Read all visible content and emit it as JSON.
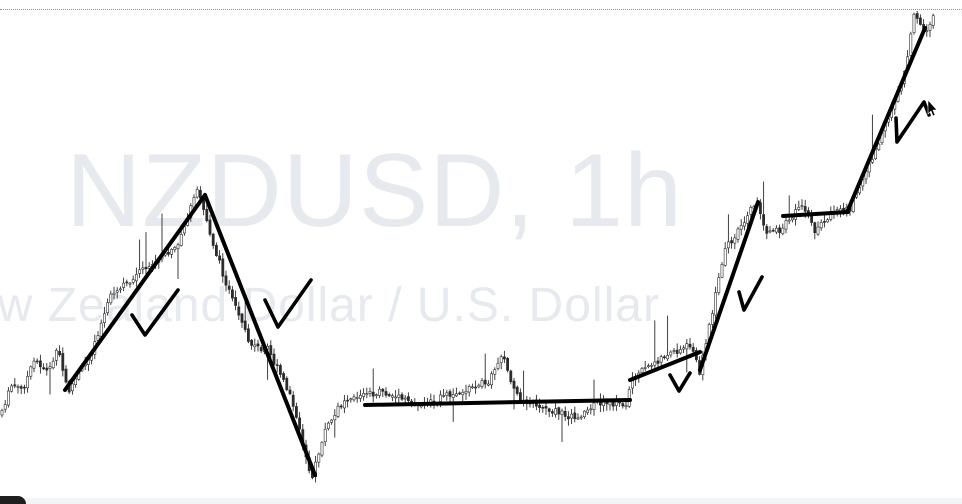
{
  "watermark": {
    "symbol": "NZDUSD, 1h",
    "description": "ew Zealand Dollar / U.S. Dollar"
  },
  "colors": {
    "candle": "#2b2b2b",
    "annotation": "#000000",
    "watermark": "#e6e9ee"
  },
  "chart_data": {
    "type": "candlestick",
    "title": "NZDUSD, 1h",
    "subtitle": "ew Zealand Dollar / U.S. Dollar",
    "xlabel": "",
    "ylabel": "",
    "grid": false,
    "path_anchors": [
      [
        0,
        415
      ],
      [
        12,
        385
      ],
      [
        22,
        390
      ],
      [
        35,
        360
      ],
      [
        48,
        372
      ],
      [
        58,
        350
      ],
      [
        68,
        392
      ],
      [
        90,
        355
      ],
      [
        110,
        298
      ],
      [
        140,
        272
      ],
      [
        175,
        250
      ],
      [
        198,
        190
      ],
      [
        215,
        250
      ],
      [
        232,
        300
      ],
      [
        250,
        345
      ],
      [
        268,
        350
      ],
      [
        290,
        395
      ],
      [
        312,
        478
      ],
      [
        325,
        430
      ],
      [
        345,
        398
      ],
      [
        380,
        392
      ],
      [
        420,
        405
      ],
      [
        460,
        392
      ],
      [
        490,
        380
      ],
      [
        502,
        352
      ],
      [
        515,
        395
      ],
      [
        545,
        408
      ],
      [
        575,
        418
      ],
      [
        600,
        402
      ],
      [
        628,
        405
      ],
      [
        630,
        380
      ],
      [
        665,
        355
      ],
      [
        690,
        345
      ],
      [
        700,
        372
      ],
      [
        725,
        250
      ],
      [
        757,
        200
      ],
      [
        765,
        230
      ],
      [
        780,
        232
      ],
      [
        800,
        205
      ],
      [
        815,
        230
      ],
      [
        830,
        215
      ],
      [
        850,
        208
      ],
      [
        880,
        140
      ],
      [
        905,
        70
      ],
      [
        915,
        12
      ],
      [
        925,
        38
      ],
      [
        935,
        14
      ]
    ],
    "annotations": [
      {
        "type": "trendline",
        "points": [
          [
            65,
            390
          ],
          [
            205,
            195
          ]
        ]
      },
      {
        "type": "checkmark",
        "points": [
          [
            132,
            315
          ],
          [
            145,
            335
          ],
          [
            178,
            290
          ]
        ]
      },
      {
        "type": "trendline",
        "points": [
          [
            205,
            195
          ],
          [
            315,
            475
          ]
        ]
      },
      {
        "type": "checkmark",
        "points": [
          [
            265,
            300
          ],
          [
            278,
            327
          ],
          [
            311,
            280
          ]
        ]
      },
      {
        "type": "trendline",
        "points": [
          [
            365,
            405
          ],
          [
            630,
            400
          ]
        ]
      },
      {
        "type": "trendline",
        "points": [
          [
            630,
            380
          ],
          [
            700,
            352
          ]
        ]
      },
      {
        "type": "checkmark",
        "points": [
          [
            670,
            375
          ],
          [
            679,
            391
          ],
          [
            690,
            373
          ]
        ]
      },
      {
        "type": "trendline",
        "points": [
          [
            700,
            370
          ],
          [
            758,
            202
          ]
        ]
      },
      {
        "type": "checkmark",
        "points": [
          [
            739,
            292
          ],
          [
            744,
            310
          ],
          [
            762,
            277
          ]
        ]
      },
      {
        "type": "trendline",
        "points": [
          [
            783,
            216
          ],
          [
            848,
            212
          ]
        ]
      },
      {
        "type": "trendline",
        "points": [
          [
            848,
            210
          ],
          [
            925,
            28
          ]
        ]
      },
      {
        "type": "checkmark",
        "points": [
          [
            896,
            118
          ],
          [
            897,
            142
          ],
          [
            924,
            102
          ],
          [
            929,
            115
          ]
        ]
      }
    ]
  }
}
